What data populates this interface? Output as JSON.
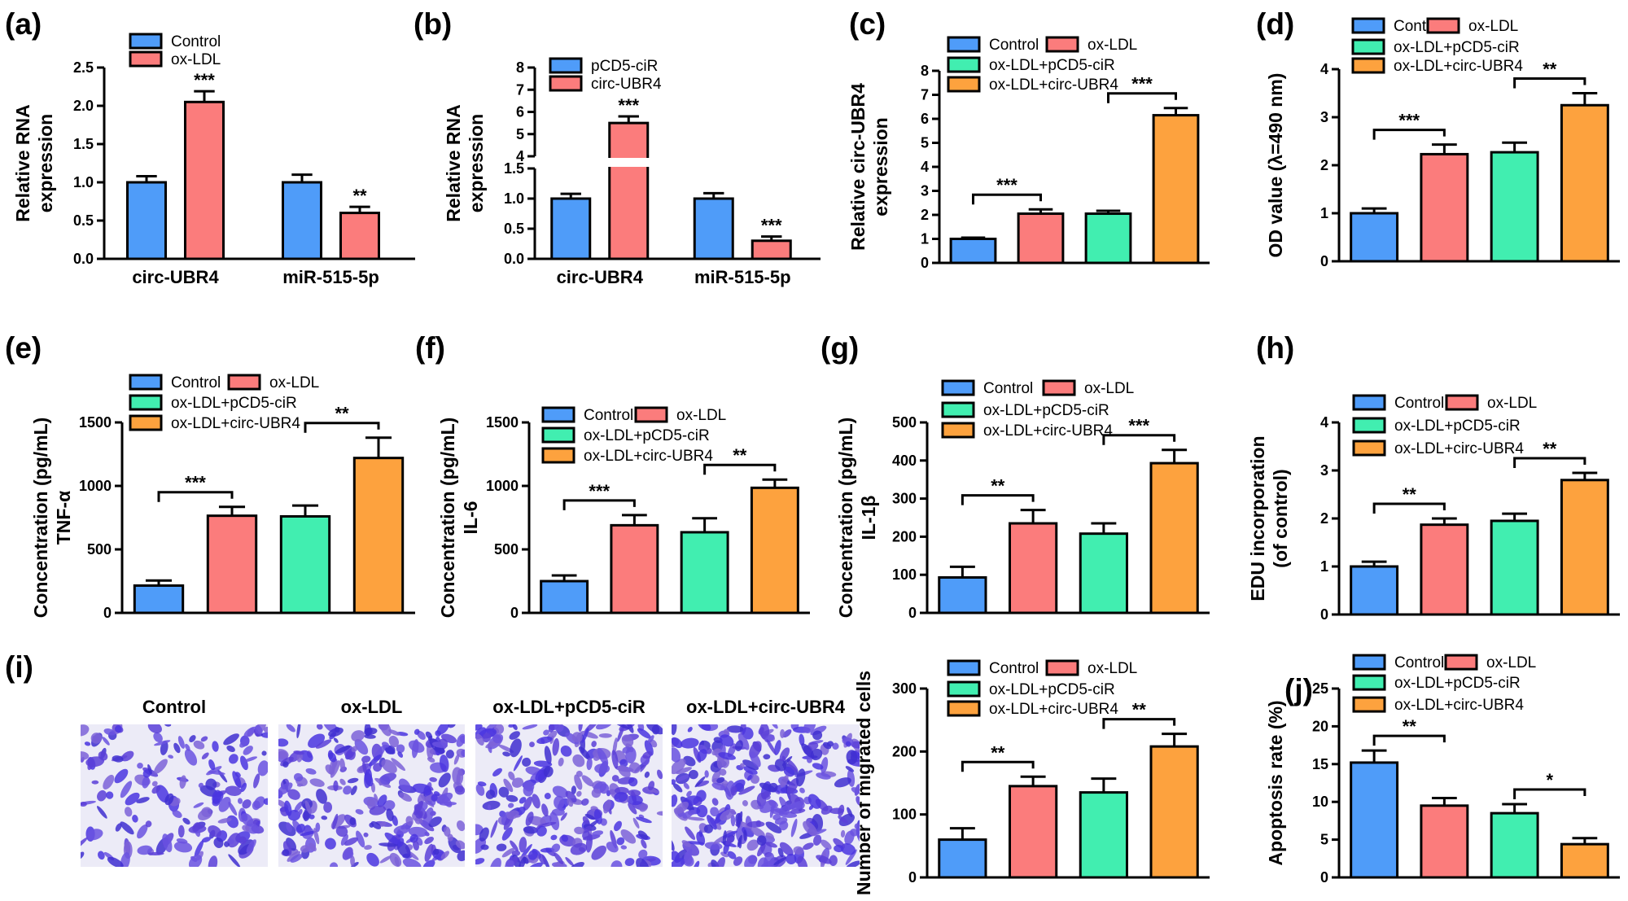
{
  "colors": {
    "Control": "#4f9cf9",
    "ox-LDL": "#fb7c7c",
    "ox-LDL+pCD5-ciR": "#41eeb0",
    "ox-LDL+circ-UBR4": "#fda23e",
    "pCD5-ciR": "#4f9cf9",
    "circ-UBR4": "#fb7c7c",
    "stain": "#4a35e0",
    "membrane": "#ecebf7"
  },
  "micrographs": {
    "panel_label": "(i)",
    "titles": [
      "Control",
      "ox-LDL",
      "ox-LDL+pCD5-ciR",
      "ox-LDL+circ-UBR4"
    ]
  },
  "chart_data": [
    {
      "id": "a",
      "panel_label": "(a)",
      "type": "bar",
      "grouped": true,
      "categories": [
        "circ-UBR4",
        "miR-515-5p"
      ],
      "series": [
        {
          "name": "Control",
          "values": [
            1.0,
            1.0
          ],
          "errors": [
            0.08,
            0.1
          ]
        },
        {
          "name": "ox-LDL",
          "values": [
            2.05,
            0.6
          ],
          "errors": [
            0.14,
            0.08
          ]
        }
      ],
      "ylabel": [
        "Relative RNA",
        "expression"
      ],
      "ylim": [
        0,
        2.5
      ],
      "yticks": [
        "0.0",
        "0.5",
        "1.0",
        "1.5",
        "2.0",
        "2.5"
      ],
      "significance": [
        {
          "category": 0,
          "label": "***"
        },
        {
          "category": 1,
          "label": "**"
        }
      ]
    },
    {
      "id": "b",
      "panel_label": "(b)",
      "type": "bar",
      "grouped": true,
      "broken_axis": true,
      "categories": [
        "circ-UBR4",
        "miR-515-5p"
      ],
      "series": [
        {
          "name": "pCD5-ciR",
          "values": [
            1.0,
            1.0
          ],
          "errors": [
            0.08,
            0.09
          ]
        },
        {
          "name": "circ-UBR4",
          "values": [
            5.5,
            0.3
          ],
          "errors": [
            0.3,
            0.07
          ]
        }
      ],
      "ylabel": [
        "Relative RNA",
        "expression"
      ],
      "ylim_lower": [
        0,
        1.5
      ],
      "ylim_upper": [
        4,
        8
      ],
      "yticks_lower": [
        "0.0",
        "0.5",
        "1.0",
        "1.5"
      ],
      "yticks_upper": [
        "4",
        "5",
        "6",
        "7",
        "8"
      ],
      "significance": [
        {
          "category": 0,
          "label": "***"
        },
        {
          "category": 1,
          "label": "***"
        }
      ]
    },
    {
      "id": "c",
      "panel_label": "(c)",
      "type": "bar",
      "series": [
        {
          "name": "Control",
          "value": 1.0,
          "error": 0.05
        },
        {
          "name": "ox-LDL",
          "value": 2.05,
          "error": 0.18
        },
        {
          "name": "ox-LDL+pCD5-ciR",
          "value": 2.05,
          "error": 0.12
        },
        {
          "name": "ox-LDL+circ-UBR4",
          "value": 6.15,
          "error": 0.3
        }
      ],
      "ylabel": [
        "Relative circ-UBR4",
        "expression"
      ],
      "ylim": [
        0,
        8
      ],
      "yticks": [
        "0",
        "1",
        "2",
        "3",
        "4",
        "5",
        "6",
        "7",
        "8"
      ],
      "significance": [
        {
          "groups": [
            0,
            1
          ],
          "label": "***"
        },
        {
          "groups": [
            2,
            3
          ],
          "label": "***"
        }
      ]
    },
    {
      "id": "d",
      "panel_label": "(d)",
      "type": "bar",
      "series": [
        {
          "name": "Control",
          "value": 1.0,
          "error": 0.1
        },
        {
          "name": "ox-LDL",
          "value": 2.23,
          "error": 0.2
        },
        {
          "name": "ox-LDL+pCD5-ciR",
          "value": 2.27,
          "error": 0.2
        },
        {
          "name": "ox-LDL+circ-UBR4",
          "value": 3.25,
          "error": 0.25
        }
      ],
      "ylabel": [
        "OD value (λ=490 nm)"
      ],
      "ylim": [
        0,
        4
      ],
      "yticks": [
        "0",
        "1",
        "2",
        "3",
        "4"
      ],
      "significance": [
        {
          "groups": [
            0,
            1
          ],
          "label": "***"
        },
        {
          "groups": [
            2,
            3
          ],
          "label": "**"
        }
      ]
    },
    {
      "id": "e",
      "panel_label": "(e)",
      "type": "bar",
      "series": [
        {
          "name": "Control",
          "value": 215,
          "error": 40
        },
        {
          "name": "ox-LDL",
          "value": 765,
          "error": 70
        },
        {
          "name": "ox-LDL+pCD5-ciR",
          "value": 760,
          "error": 85
        },
        {
          "name": "ox-LDL+circ-UBR4",
          "value": 1220,
          "error": 160
        }
      ],
      "ylabel": [
        "Concentration (pg/mL)",
        "TNF-α"
      ],
      "ylim": [
        0,
        1500
      ],
      "yticks": [
        "0",
        "500",
        "1000",
        "1500"
      ],
      "significance": [
        {
          "groups": [
            0,
            1
          ],
          "label": "***"
        },
        {
          "groups": [
            2,
            3
          ],
          "label": "**"
        }
      ]
    },
    {
      "id": "f",
      "panel_label": "(f)",
      "type": "bar",
      "series": [
        {
          "name": "Control",
          "value": 250,
          "error": 45
        },
        {
          "name": "ox-LDL",
          "value": 690,
          "error": 80
        },
        {
          "name": "ox-LDL+pCD5-ciR",
          "value": 635,
          "error": 110
        },
        {
          "name": "ox-LDL+circ-UBR4",
          "value": 985,
          "error": 65
        }
      ],
      "ylabel": [
        "Concentration (pg/mL)",
        "IL-6"
      ],
      "ylim": [
        0,
        1500
      ],
      "yticks": [
        "0",
        "500",
        "1000",
        "1500"
      ],
      "significance": [
        {
          "groups": [
            0,
            1
          ],
          "label": "***"
        },
        {
          "groups": [
            2,
            3
          ],
          "label": "**"
        }
      ]
    },
    {
      "id": "g",
      "panel_label": "(g)",
      "type": "bar",
      "series": [
        {
          "name": "Control",
          "value": 93,
          "error": 28
        },
        {
          "name": "ox-LDL",
          "value": 235,
          "error": 35
        },
        {
          "name": "ox-LDL+pCD5-ciR",
          "value": 208,
          "error": 27
        },
        {
          "name": "ox-LDL+circ-UBR4",
          "value": 393,
          "error": 35
        }
      ],
      "ylabel": [
        "Concentration (pg/mL)",
        "IL-1β"
      ],
      "ylim": [
        0,
        500
      ],
      "yticks": [
        "0",
        "100",
        "200",
        "300",
        "400",
        "500"
      ],
      "significance": [
        {
          "groups": [
            0,
            1
          ],
          "label": "**"
        },
        {
          "groups": [
            2,
            3
          ],
          "label": "***"
        }
      ]
    },
    {
      "id": "h",
      "panel_label": "(h)",
      "type": "bar",
      "series": [
        {
          "name": "Control",
          "value": 1.0,
          "error": 0.1
        },
        {
          "name": "ox-LDL",
          "value": 1.87,
          "error": 0.13
        },
        {
          "name": "ox-LDL+pCD5-ciR",
          "value": 1.95,
          "error": 0.15
        },
        {
          "name": "ox-LDL+circ-UBR4",
          "value": 2.8,
          "error": 0.15
        }
      ],
      "ylabel": [
        "EDU incorporation",
        "(of control)"
      ],
      "ylim": [
        0,
        4
      ],
      "yticks": [
        "0",
        "1",
        "2",
        "3",
        "4"
      ],
      "significance": [
        {
          "groups": [
            0,
            1
          ],
          "label": "**"
        },
        {
          "groups": [
            2,
            3
          ],
          "label": "**"
        }
      ]
    },
    {
      "id": "i",
      "panel_label": "",
      "type": "bar",
      "series": [
        {
          "name": "Control",
          "value": 60,
          "error": 18
        },
        {
          "name": "ox-LDL",
          "value": 145,
          "error": 15
        },
        {
          "name": "ox-LDL+pCD5-ciR",
          "value": 135,
          "error": 22
        },
        {
          "name": "ox-LDL+circ-UBR4",
          "value": 208,
          "error": 20
        }
      ],
      "ylabel": [
        "Number of migrated cells"
      ],
      "ylim": [
        0,
        300
      ],
      "yticks": [
        "0",
        "100",
        "200",
        "300"
      ],
      "significance": [
        {
          "groups": [
            0,
            1
          ],
          "label": "**"
        },
        {
          "groups": [
            2,
            3
          ],
          "label": "**"
        }
      ]
    },
    {
      "id": "j",
      "panel_label": "(j)",
      "type": "bar",
      "series": [
        {
          "name": "Control",
          "value": 15.2,
          "error": 1.6
        },
        {
          "name": "ox-LDL",
          "value": 9.5,
          "error": 1.0
        },
        {
          "name": "ox-LDL+pCD5-ciR",
          "value": 8.5,
          "error": 1.2
        },
        {
          "name": "ox-LDL+circ-UBR4",
          "value": 4.4,
          "error": 0.8
        }
      ],
      "ylabel": [
        "Apoptosis rate (%)"
      ],
      "ylim": [
        0,
        25
      ],
      "yticks": [
        "0",
        "5",
        "10",
        "15",
        "20",
        "25"
      ],
      "significance": [
        {
          "groups": [
            0,
            1
          ],
          "label": "**"
        },
        {
          "groups": [
            2,
            3
          ],
          "label": "*"
        }
      ]
    }
  ]
}
